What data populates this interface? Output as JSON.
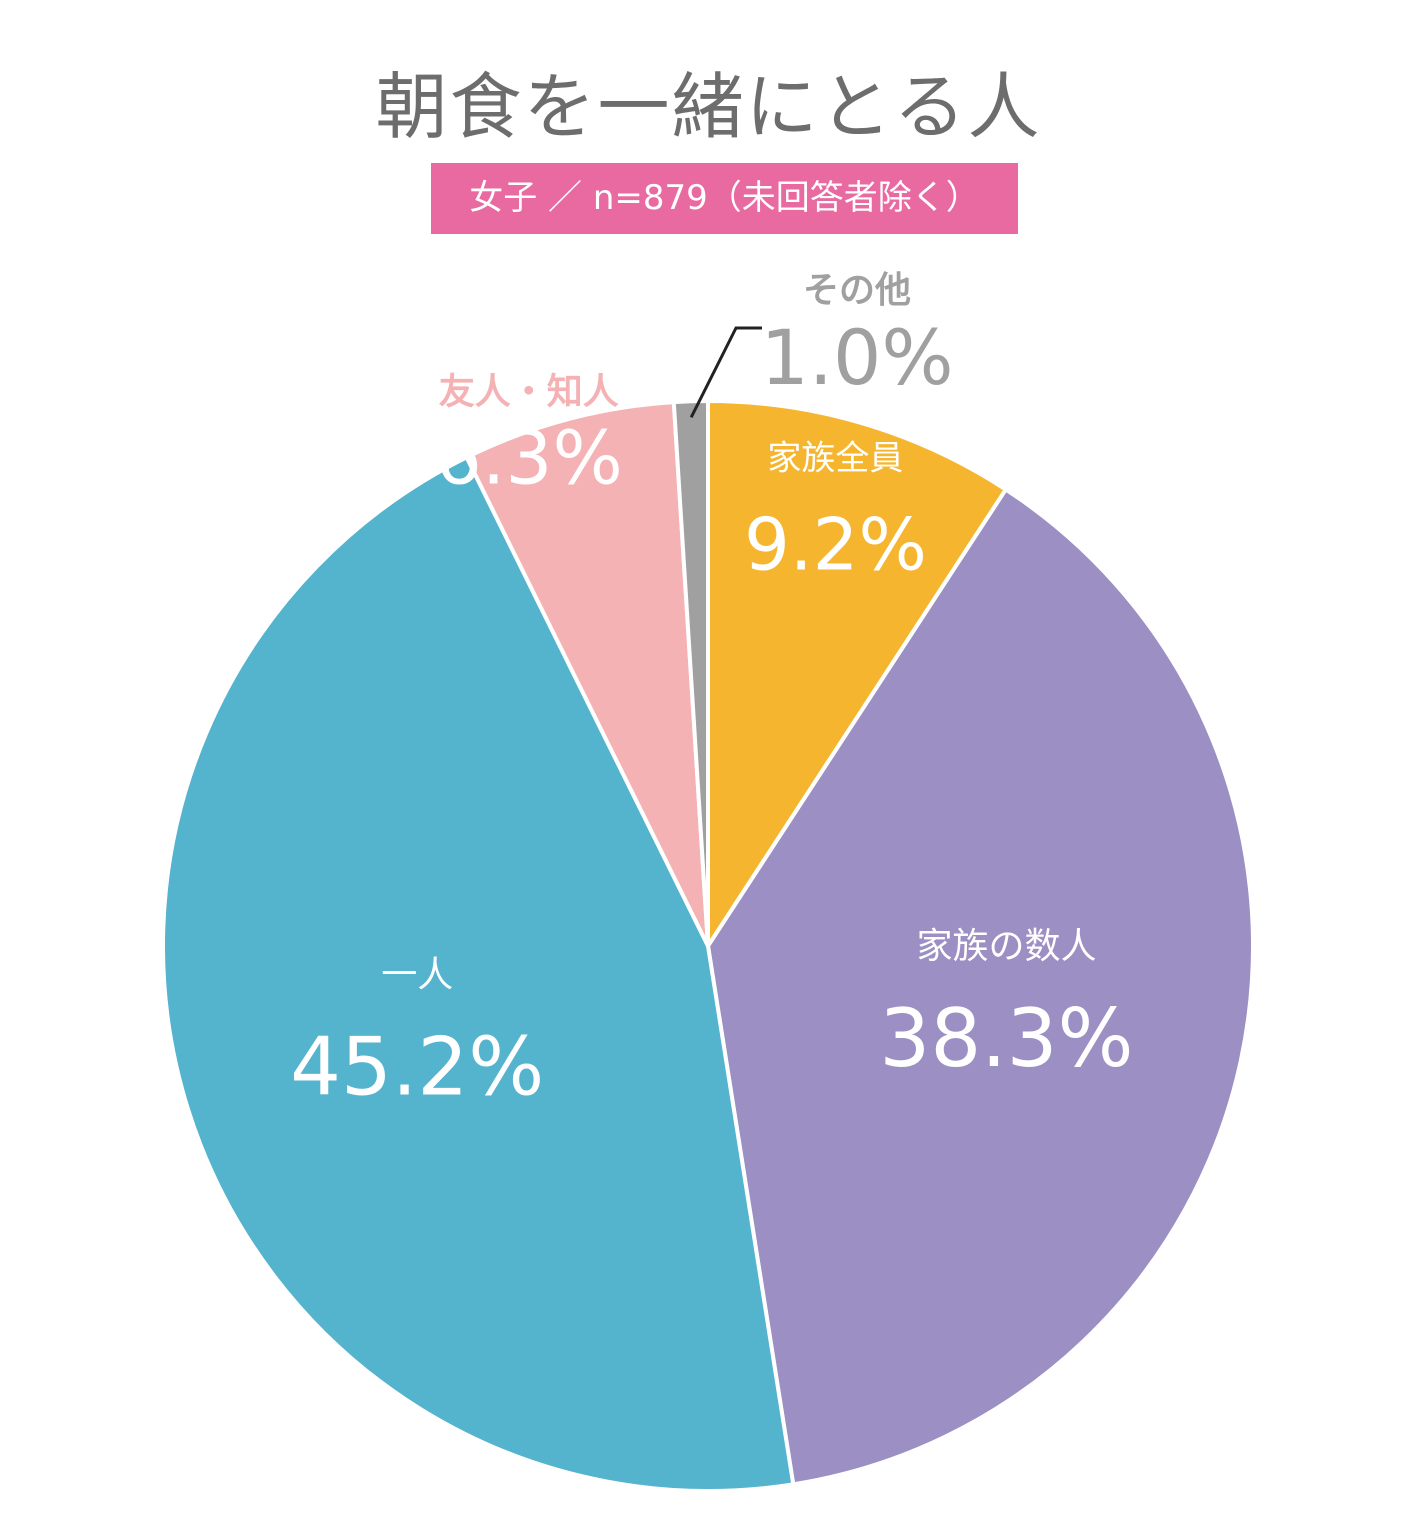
{
  "title": "朝食を一緒にとる人",
  "subtitle": "女子 ／ n=879（未回答者除く）",
  "chart_data": {
    "type": "pie",
    "title": "朝食を一緒にとる人",
    "subtitle": "女子 ／ n=879（未回答者除く）",
    "start": "12 o'clock",
    "direction": "clockwise",
    "slices": [
      {
        "label": "家族全員",
        "value": 9.2,
        "value_label": "9.2%",
        "color": "#f5b52e",
        "label_color": "#ffffff"
      },
      {
        "label": "家族の数人",
        "value": 38.3,
        "value_label": "38.3%",
        "color": "#9b8fc3",
        "label_color": "#ffffff"
      },
      {
        "label": "一人",
        "value": 45.2,
        "value_label": "45.2%",
        "color": "#54b3cd",
        "label_color": "#ffffff"
      },
      {
        "label": "友人・知人",
        "value": 6.3,
        "value_label": "6.3%",
        "color": "#f4b2b4",
        "label_color": "#ffffff",
        "name_color": "#f4b2b4"
      },
      {
        "label": "その他",
        "value": 1.0,
        "value_label": "1.0%",
        "color": "#a0a0a0",
        "label_color": "#a0a0a0",
        "callout": true
      }
    ]
  }
}
